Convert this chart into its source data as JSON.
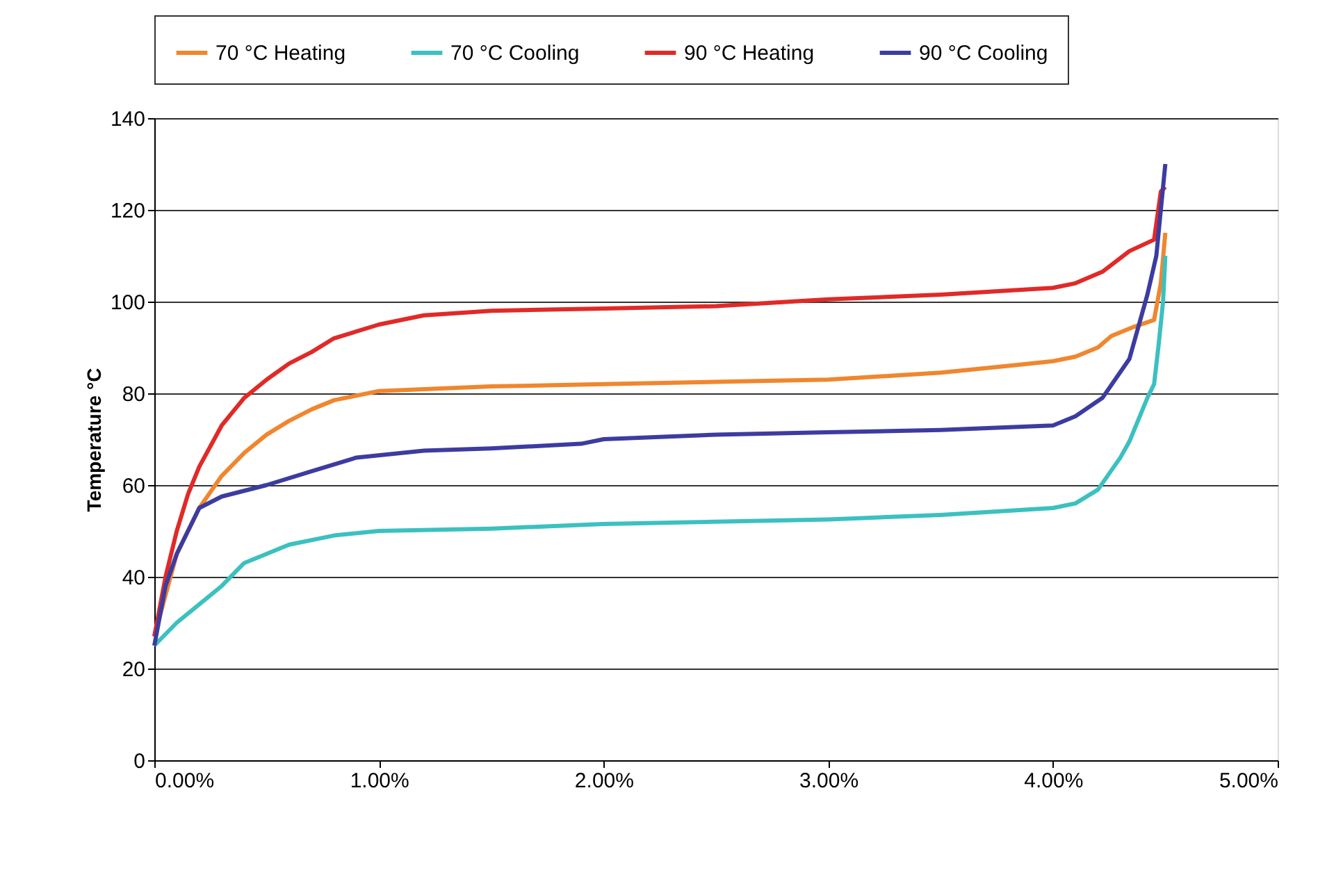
{
  "chart_data": {
    "type": "line",
    "ylabel": "Temperature °C",
    "legend": "top",
    "grid": "y",
    "marker": "none",
    "line_style": "solid",
    "xlim": [
      0,
      5
    ],
    "xticks": [
      {
        "value": 0,
        "label": "0.00%"
      },
      {
        "value": 1,
        "label": "1.00%"
      },
      {
        "value": 2,
        "label": "2.00%"
      },
      {
        "value": 3,
        "label": "3.00%"
      },
      {
        "value": 4,
        "label": "4.00%"
      },
      {
        "value": 5,
        "label": "5.00%"
      }
    ],
    "ylim": [
      0,
      140
    ],
    "yticks": [
      0,
      20,
      40,
      60,
      80,
      100,
      120,
      140
    ],
    "series": [
      {
        "name": "70 °C Heating",
        "color": "#f0862e",
        "x": [
          0,
          0.1,
          0.2,
          0.3,
          0.4,
          0.5,
          0.6,
          0.7,
          0.8,
          1.0,
          1.5,
          2.0,
          3.0,
          3.5,
          3.8,
          4.0,
          4.1,
          4.2,
          4.26,
          4.36,
          4.45,
          4.48,
          4.5
        ],
        "values": [
          27,
          45,
          55,
          62,
          67,
          71,
          74,
          76.5,
          78.5,
          80.5,
          81.5,
          82,
          83,
          84.5,
          86,
          87,
          88,
          90,
          92.5,
          94.5,
          96,
          104,
          115
        ]
      },
      {
        "name": "70 °C Cooling",
        "color": "#3cc0c0",
        "x": [
          0,
          0.1,
          0.2,
          0.3,
          0.4,
          0.5,
          0.6,
          0.8,
          1.0,
          1.5,
          2.0,
          3.0,
          3.5,
          4.0,
          4.1,
          4.2,
          4.3,
          4.34,
          4.42,
          4.45,
          4.47,
          4.49,
          4.5
        ],
        "values": [
          25,
          30,
          34,
          38,
          43,
          45,
          47,
          49,
          50,
          50.5,
          51.5,
          52.5,
          53.5,
          55,
          56,
          59,
          66,
          69.5,
          79,
          82,
          90.5,
          100,
          110
        ]
      },
      {
        "name": "90 °C Heating",
        "color": "#e02a28",
        "x": [
          0,
          0.05,
          0.1,
          0.15,
          0.2,
          0.3,
          0.4,
          0.5,
          0.6,
          0.7,
          0.8,
          1.0,
          1.2,
          1.5,
          2.0,
          2.5,
          3.0,
          3.5,
          4.0,
          4.1,
          4.22,
          4.34,
          4.45,
          4.48,
          4.5
        ],
        "values": [
          27,
          40,
          50,
          58,
          64,
          73,
          79,
          83,
          86.5,
          89,
          92,
          95,
          97,
          98,
          98.5,
          99,
          100.5,
          101.5,
          103,
          104,
          106.5,
          111,
          113.5,
          124,
          125
        ]
      },
      {
        "name": "90 °C Cooling",
        "color": "#3c3ca0",
        "x": [
          0,
          0.05,
          0.1,
          0.15,
          0.2,
          0.3,
          0.5,
          0.7,
          0.9,
          1.2,
          1.5,
          1.9,
          2.0,
          2.5,
          3.0,
          3.5,
          4.0,
          4.1,
          4.22,
          4.34,
          4.42,
          4.46,
          4.5
        ],
        "values": [
          25,
          38,
          45,
          50,
          55,
          57.5,
          60,
          63,
          66,
          67.5,
          68,
          69,
          70,
          71,
          71.5,
          72,
          73,
          75,
          79,
          87.5,
          101.5,
          110,
          130
        ]
      }
    ]
  }
}
